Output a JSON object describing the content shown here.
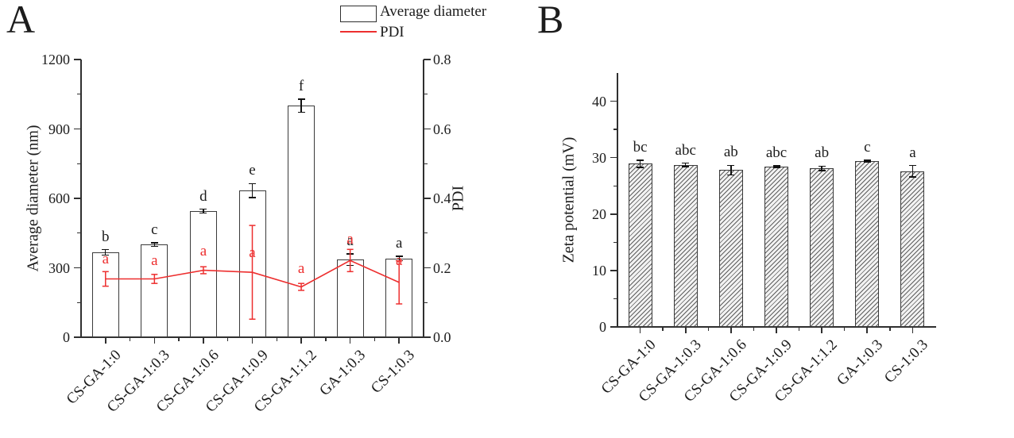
{
  "panels": [
    {
      "label": "A"
    },
    {
      "label": "B"
    }
  ],
  "legend": {
    "items": [
      {
        "label": "Average diameter",
        "type": "box"
      },
      {
        "label": "PDI",
        "type": "line"
      }
    ]
  },
  "colors": {
    "pdi_red": "#ed2f2f",
    "bar_border": "#3a3a3a",
    "axis": "#2f2f2f",
    "text": "#1c1c1c"
  },
  "chart_data": [
    {
      "panel": "A",
      "type": "bar+line",
      "categories": [
        "CS-GA-1:0",
        "CS-GA-1:0.3",
        "CS-GA-1:0.6",
        "CS-GA-1:0.9",
        "CS-GA-1:1.2",
        "GA-1:0.3",
        "CS-1:0.3"
      ],
      "bar_series": {
        "name": "Average diameter",
        "axis": "left",
        "values": [
          366,
          400,
          545,
          634,
          1000,
          335,
          340
        ],
        "errors": [
          12,
          8,
          8,
          30,
          29,
          25,
          10
        ],
        "letters": [
          "b",
          "c",
          "d",
          "e",
          "f",
          "a",
          "a"
        ]
      },
      "line_series": {
        "name": "PDI",
        "axis": "right",
        "values": [
          0.168,
          0.168,
          0.193,
          0.187,
          0.145,
          0.221,
          0.158
        ],
        "errors": [
          0.021,
          0.013,
          0.01,
          0.135,
          0.01,
          0.032,
          0.062
        ],
        "letters": [
          "a",
          "a",
          "a",
          "a",
          "a",
          "a",
          "a"
        ],
        "letter_y": [
          0.203,
          0.199,
          0.226,
          0.222,
          0.176,
          0.261,
          0.199
        ]
      },
      "left_axis": {
        "label": "Average diameter (nm)",
        "min": 0,
        "max": 1200,
        "major_step": 300,
        "minor_step": 150,
        "tick_labels": [
          "0",
          "300",
          "600",
          "900",
          "1200"
        ]
      },
      "right_axis": {
        "label": "PDI",
        "min": 0,
        "max": 0.8,
        "major_step": 0.2,
        "minor_step": 0.1,
        "tick_labels": [
          "0.0",
          "0.2",
          "0.4",
          "0.6",
          "0.8"
        ]
      },
      "grid": false,
      "legend_position": "top-center"
    },
    {
      "panel": "B",
      "type": "bar",
      "categories": [
        "CS-GA-1:0",
        "CS-GA-1:0.3",
        "CS-GA-1:0.6",
        "CS-GA-1:0.9",
        "CS-GA-1:1.2",
        "GA-1:0.3",
        "CS-1:0.3"
      ],
      "bar_series": {
        "name": "Zeta potential",
        "axis": "left",
        "values": [
          28.9,
          28.7,
          27.8,
          28.4,
          28.1,
          29.4,
          27.6
        ],
        "errors": [
          0.65,
          0.3,
          0.85,
          0.15,
          0.4,
          0.15,
          1.0
        ],
        "letters": [
          "bc",
          "abc",
          "ab",
          "abc",
          "ab",
          "c",
          "a"
        ]
      },
      "left_axis": {
        "label": "Zeta potential (mV)",
        "min": 0,
        "max": 45,
        "major_step": 10,
        "minor_step": 5,
        "tick_labels": [
          "0",
          "10",
          "20",
          "30",
          "40"
        ]
      },
      "grid": false
    }
  ]
}
